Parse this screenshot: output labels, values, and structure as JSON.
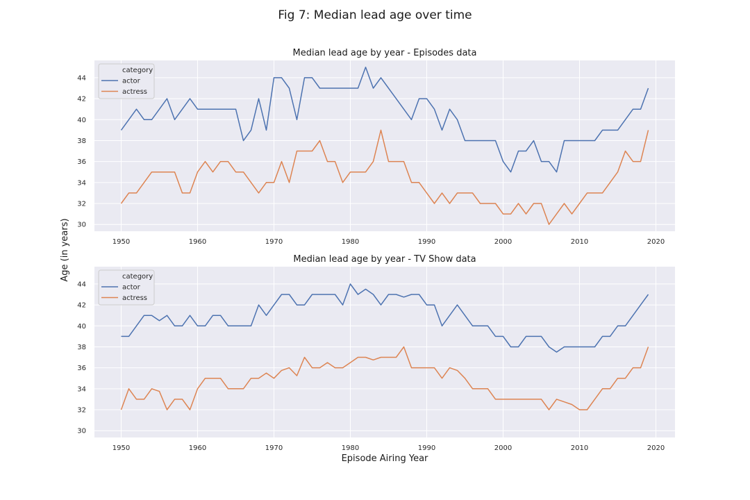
{
  "figure": {
    "title": "Fig 7: Median lead age over time",
    "ylabel": "Age (in years)",
    "xlabel": "Episode Airing Year"
  },
  "legend_title": "category",
  "series_colors": {
    "actor": "#4c72b0",
    "actress": "#dd8452"
  },
  "chart_data": [
    {
      "type": "line",
      "title": "Median lead age by year - Episodes data",
      "xlabel": "",
      "ylabel": "",
      "xlim": [
        1946.5,
        2022.5
      ],
      "ylim": [
        29.35,
        45.65
      ],
      "xticks": [
        1950,
        1960,
        1970,
        1980,
        1990,
        2000,
        2010,
        2020
      ],
      "yticks": [
        30,
        32,
        34,
        36,
        38,
        40,
        42,
        44
      ],
      "grid": true,
      "legend_position": "top-left",
      "x": [
        1950,
        1951,
        1952,
        1953,
        1954,
        1955,
        1956,
        1957,
        1958,
        1959,
        1960,
        1961,
        1962,
        1963,
        1964,
        1965,
        1966,
        1967,
        1968,
        1969,
        1970,
        1971,
        1972,
        1973,
        1974,
        1975,
        1976,
        1977,
        1978,
        1979,
        1980,
        1981,
        1982,
        1983,
        1984,
        1985,
        1986,
        1987,
        1988,
        1989,
        1990,
        1991,
        1992,
        1993,
        1994,
        1995,
        1996,
        1997,
        1998,
        1999,
        2000,
        2001,
        2002,
        2003,
        2004,
        2005,
        2006,
        2007,
        2008,
        2009,
        2010,
        2011,
        2012,
        2013,
        2014,
        2015,
        2016,
        2017,
        2018,
        2019
      ],
      "series": [
        {
          "name": "actor",
          "values": [
            39,
            40,
            41,
            40,
            40,
            41,
            42,
            40,
            41,
            42,
            41,
            41,
            41,
            41,
            41,
            41,
            38,
            39,
            42,
            39,
            44,
            44,
            43,
            40,
            44,
            44,
            43,
            43,
            43,
            43,
            43,
            43,
            45,
            43,
            44,
            43,
            42,
            41,
            40,
            42,
            42,
            41,
            39,
            41,
            40,
            38,
            38,
            38,
            38,
            38,
            36,
            35,
            37,
            37,
            38,
            36,
            36,
            35,
            38,
            38,
            38,
            38,
            38,
            39,
            39,
            39,
            40,
            41,
            41,
            43
          ]
        },
        {
          "name": "actress",
          "values": [
            32,
            33,
            33,
            34,
            35,
            35,
            35,
            35,
            33,
            33,
            35,
            36,
            35,
            36,
            36,
            35,
            35,
            34,
            33,
            34,
            34,
            36,
            34,
            37,
            37,
            37,
            38,
            36,
            36,
            34,
            35,
            35,
            35,
            36,
            39,
            36,
            36,
            36,
            34,
            34,
            33,
            32,
            33,
            32,
            33,
            33,
            33,
            32,
            32,
            32,
            31,
            31,
            32,
            31,
            32,
            32,
            30,
            31,
            32,
            31,
            32,
            33,
            33,
            33,
            34,
            35,
            37,
            36,
            36,
            39
          ]
        }
      ]
    },
    {
      "type": "line",
      "title": "Median lead age by year - TV Show data",
      "xlabel": "Episode Airing Year",
      "ylabel": "",
      "xlim": [
        1946.5,
        2022.5
      ],
      "ylim": [
        29.35,
        45.65
      ],
      "xticks": [
        1950,
        1960,
        1970,
        1980,
        1990,
        2000,
        2010,
        2020
      ],
      "yticks": [
        30,
        32,
        34,
        36,
        38,
        40,
        42,
        44
      ],
      "grid": true,
      "legend_position": "top-left",
      "x": [
        1950,
        1951,
        1952,
        1953,
        1954,
        1955,
        1956,
        1957,
        1958,
        1959,
        1960,
        1961,
        1962,
        1963,
        1964,
        1965,
        1966,
        1967,
        1968,
        1969,
        1970,
        1971,
        1972,
        1973,
        1974,
        1975,
        1976,
        1977,
        1978,
        1979,
        1980,
        1981,
        1982,
        1983,
        1984,
        1985,
        1986,
        1987,
        1988,
        1989,
        1990,
        1991,
        1992,
        1993,
        1994,
        1995,
        1996,
        1997,
        1998,
        1999,
        2000,
        2001,
        2002,
        2003,
        2004,
        2005,
        2006,
        2007,
        2008,
        2009,
        2010,
        2011,
        2012,
        2013,
        2014,
        2015,
        2016,
        2017,
        2018,
        2019
      ],
      "series": [
        {
          "name": "actor",
          "values": [
            39,
            39,
            40,
            41,
            41,
            40.5,
            41,
            40,
            40,
            41,
            40,
            40,
            41,
            41,
            40,
            40,
            40,
            40,
            42,
            41,
            42,
            43,
            43,
            42,
            42,
            43,
            43,
            43,
            43,
            42,
            44,
            43,
            43.5,
            43,
            42,
            43,
            43,
            42.75,
            43,
            43,
            42,
            42,
            40,
            41,
            42,
            41,
            40,
            40,
            40,
            39,
            39,
            38,
            38,
            39,
            39,
            39,
            38,
            37.5,
            38,
            38,
            38,
            38,
            38,
            39,
            39,
            40,
            40,
            41,
            42,
            43
          ]
        },
        {
          "name": "actress",
          "values": [
            32,
            34,
            33,
            33,
            34,
            33.75,
            32,
            33,
            33,
            32,
            34,
            35,
            35,
            35,
            34,
            34,
            34,
            35,
            35,
            35.5,
            35,
            35.75,
            36,
            35.25,
            37,
            36,
            36,
            36.5,
            36,
            36,
            36.5,
            37,
            37,
            36.75,
            37,
            37,
            37,
            38,
            36,
            36,
            36,
            36,
            35,
            36,
            35.75,
            35,
            34,
            34,
            34,
            33,
            33,
            33,
            33,
            33,
            33,
            33,
            32,
            33,
            32.75,
            32.5,
            32,
            32,
            33,
            34,
            34,
            35,
            35,
            36,
            36,
            38
          ]
        }
      ]
    }
  ]
}
